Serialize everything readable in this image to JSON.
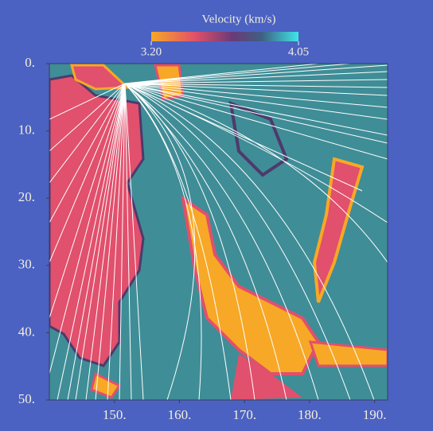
{
  "chart_data": {
    "type": "heatmap",
    "colorbar": {
      "label": "Velocity (km/s)",
      "clim": [
        3.2,
        4.05
      ],
      "ticks": [
        {
          "value": 3.2,
          "label": "3.20"
        },
        {
          "value": 4.05,
          "label": "4.05"
        }
      ]
    },
    "xlim": [
      140,
      192
    ],
    "xticks": [
      {
        "value": 150,
        "label": "150."
      },
      {
        "value": 160,
        "label": "160."
      },
      {
        "value": 170,
        "label": "170."
      },
      {
        "value": 180,
        "label": "180."
      },
      {
        "value": 190,
        "label": "190."
      }
    ],
    "ylim": [
      0,
      50
    ],
    "yticks": [
      {
        "value": 0,
        "label": "0."
      },
      {
        "value": 10,
        "label": "10."
      },
      {
        "value": 20,
        "label": "20."
      },
      {
        "value": 30,
        "label": "30."
      },
      {
        "value": 40,
        "label": "40."
      },
      {
        "value": 50,
        "label": "50."
      }
    ]
  }
}
